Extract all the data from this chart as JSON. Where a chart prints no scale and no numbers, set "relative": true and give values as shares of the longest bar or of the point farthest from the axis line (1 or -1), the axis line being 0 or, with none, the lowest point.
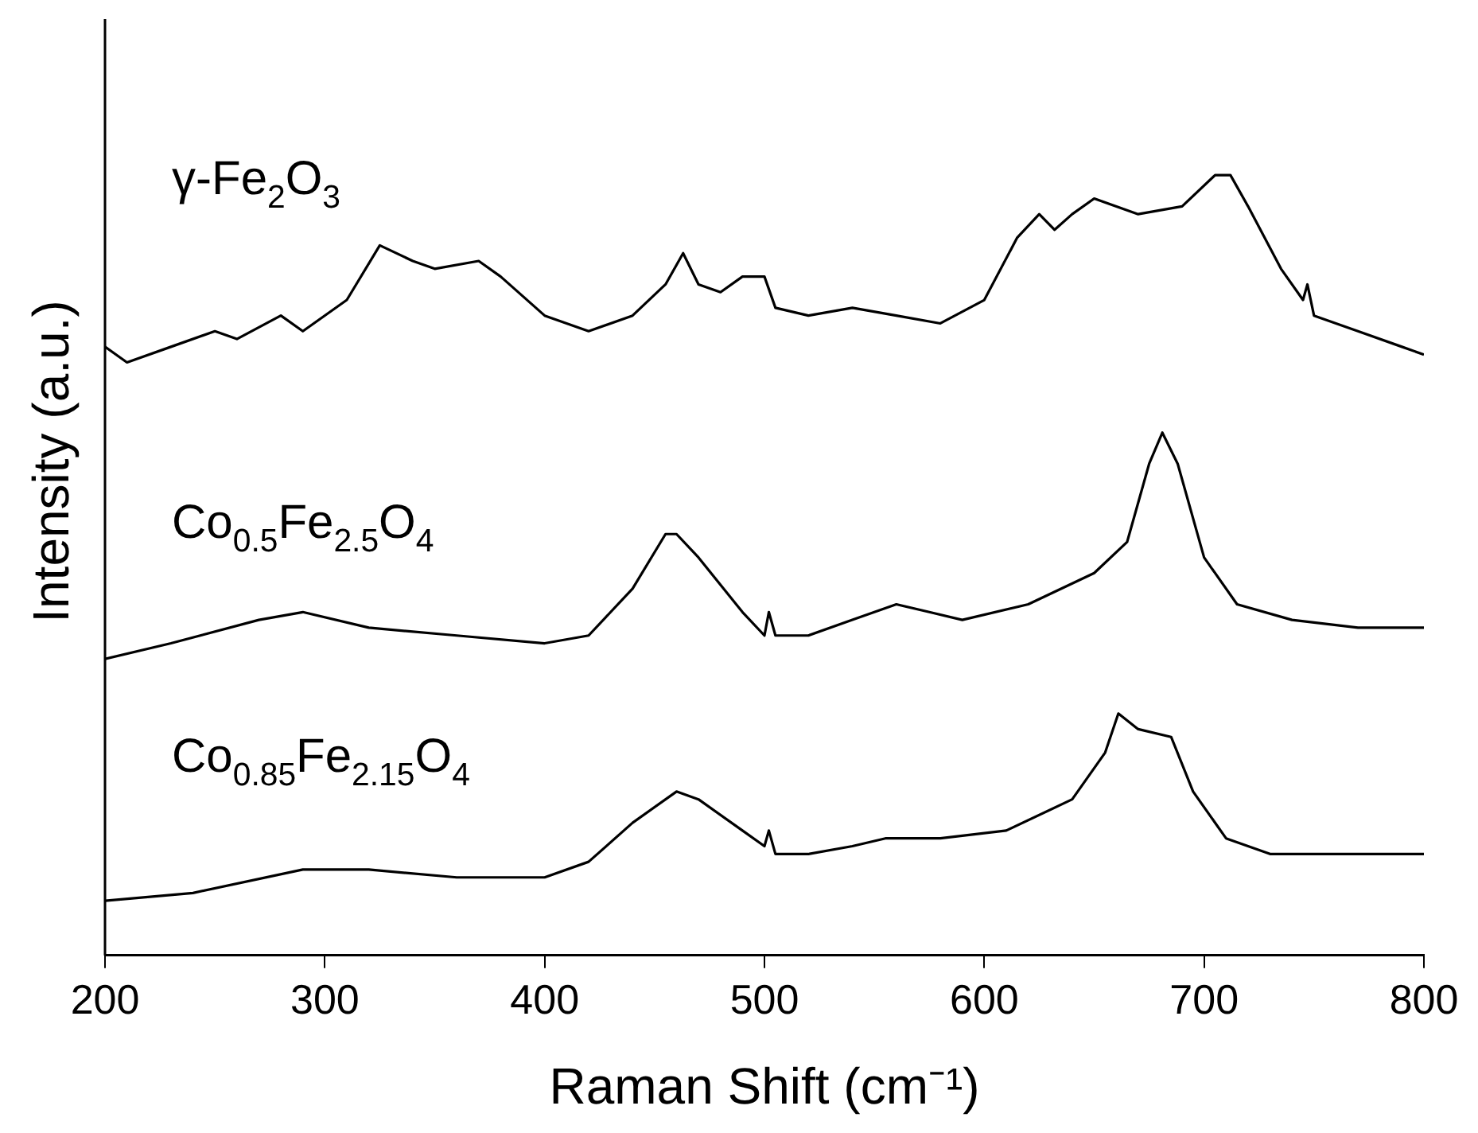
{
  "chart_data": {
    "type": "line",
    "xlabel": "Raman Shift (cm⁻¹)",
    "ylabel": "Intensity (a.u.)",
    "relative": true,
    "legend": false,
    "grid": false,
    "marker": "none",
    "line_style": "solid",
    "xlim": [
      200,
      800
    ],
    "xticks": [
      200,
      300,
      400,
      500,
      600,
      700,
      800
    ],
    "series": [
      {
        "name": "γ-Fe$_{2}$O$_{3}$",
        "color": "#000000",
        "x": [
          200,
          210,
          230,
          250,
          260,
          280,
          290,
          310,
          325,
          340,
          350,
          370,
          380,
          400,
          420,
          440,
          455,
          463,
          470,
          480,
          490,
          500,
          505,
          520,
          540,
          560,
          580,
          600,
          615,
          625,
          632,
          640,
          650,
          670,
          690,
          705,
          712,
          720,
          735,
          745,
          747,
          750,
          770,
          790,
          800
        ],
        "values": [
          0.78,
          0.76,
          0.78,
          0.8,
          0.79,
          0.82,
          0.8,
          0.84,
          0.91,
          0.89,
          0.88,
          0.89,
          0.87,
          0.82,
          0.8,
          0.82,
          0.86,
          0.9,
          0.86,
          0.85,
          0.87,
          0.87,
          0.83,
          0.82,
          0.83,
          0.82,
          0.81,
          0.84,
          0.92,
          0.95,
          0.93,
          0.95,
          0.97,
          0.95,
          0.96,
          1.0,
          1.0,
          0.96,
          0.88,
          0.84,
          0.86,
          0.82,
          0.8,
          0.78,
          0.77
        ]
      },
      {
        "name": "Co$_{0.5}$Fe$_{2.5}$O$_{4}$",
        "color": "#000000",
        "x": [
          200,
          230,
          270,
          290,
          320,
          360,
          400,
          420,
          440,
          455,
          460,
          470,
          490,
          500,
          502,
          505,
          520,
          540,
          560,
          575,
          590,
          620,
          650,
          665,
          675,
          681,
          688,
          700,
          715,
          740,
          770,
          800
        ],
        "values": [
          0.38,
          0.4,
          0.43,
          0.44,
          0.42,
          0.41,
          0.4,
          0.41,
          0.47,
          0.54,
          0.54,
          0.51,
          0.44,
          0.41,
          0.44,
          0.41,
          0.41,
          0.43,
          0.45,
          0.44,
          0.43,
          0.45,
          0.49,
          0.53,
          0.63,
          0.67,
          0.63,
          0.51,
          0.45,
          0.43,
          0.42,
          0.42
        ]
      },
      {
        "name": "Co$_{0.85}$Fe$_{2.15}$O$_{4}$",
        "color": "#000000",
        "x": [
          200,
          240,
          290,
          320,
          360,
          400,
          420,
          440,
          460,
          470,
          490,
          500,
          502,
          505,
          520,
          540,
          555,
          580,
          610,
          640,
          655,
          661,
          670,
          685,
          695,
          710,
          730,
          760,
          790,
          800
        ],
        "values": [
          0.07,
          0.08,
          0.11,
          0.11,
          0.1,
          0.1,
          0.12,
          0.17,
          0.21,
          0.2,
          0.16,
          0.14,
          0.16,
          0.13,
          0.13,
          0.14,
          0.15,
          0.15,
          0.16,
          0.2,
          0.26,
          0.31,
          0.29,
          0.28,
          0.21,
          0.15,
          0.13,
          0.13,
          0.13,
          0.13
        ]
      }
    ]
  }
}
